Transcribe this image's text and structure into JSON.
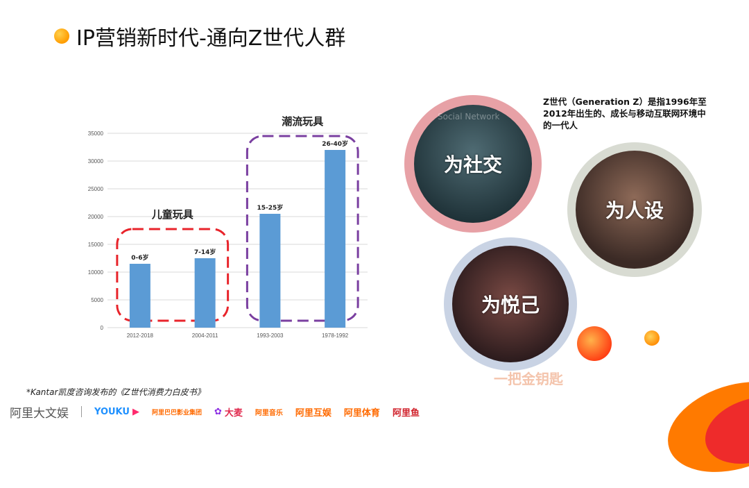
{
  "title": "IP营销新时代-通向Z世代人群",
  "chart_data": {
    "type": "bar",
    "categories": [
      "2012-2018",
      "2004-2011",
      "1993-2003",
      "1978-1992"
    ],
    "values": [
      11500,
      12500,
      20500,
      32000
    ],
    "bar_labels": [
      "0-6岁",
      "7-14岁",
      "15-25岁",
      "26-40岁"
    ],
    "yticks": [
      0,
      5000,
      10000,
      15000,
      20000,
      25000,
      30000,
      35000
    ],
    "ylim": [
      0,
      35000
    ],
    "grid": true,
    "groups": [
      {
        "label": "儿童玩具",
        "color": "#e8242b"
      },
      {
        "label": "潮流玩具",
        "color": "#7a3fa0"
      }
    ]
  },
  "description": "Z世代（Generation Z）是指1996年至2012年出生的、成长与移动互联网环境中的一代人",
  "circles": [
    {
      "label": "为社交",
      "overlay": "Social   Network"
    },
    {
      "label": "为人设"
    },
    {
      "label": "为悦己"
    }
  ],
  "key_text": "一把金钥匙",
  "footnote": "*Kantar凯度咨询发布的《Z世代消费力白皮书》",
  "logos": [
    "阿里大文娱",
    "YOUKU",
    "阿里巴巴影业集团",
    "大麦",
    "阿里音乐",
    "阿里互娱",
    "阿里体育",
    "阿里鱼"
  ],
  "colors": {
    "bar": "#5b9bd5",
    "accent_orange": "#ff7a00",
    "accent_red": "#e8242b"
  }
}
